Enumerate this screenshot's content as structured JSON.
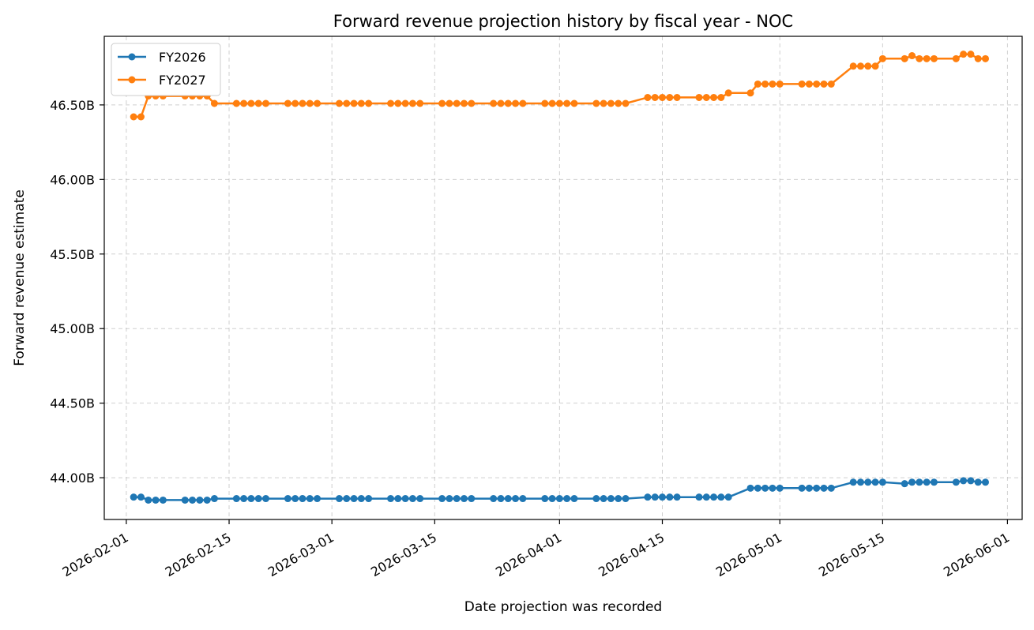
{
  "chart_data": {
    "type": "line",
    "title": "Forward revenue projection history by fiscal year - NOC",
    "xlabel": "Date projection was recorded",
    "ylabel": "Forward revenue estimate",
    "xlim": [
      "2026-01-29",
      "2026-06-03"
    ],
    "ylim": [
      43.72,
      46.96
    ],
    "grid": true,
    "legend_position": "top-left",
    "x_ticks": [
      "2026-02-01",
      "2026-02-15",
      "2026-03-01",
      "2026-03-15",
      "2026-04-01",
      "2026-04-15",
      "2026-05-01",
      "2026-05-15",
      "2026-06-01"
    ],
    "y_ticks": [
      44.0,
      44.5,
      45.0,
      45.5,
      46.0,
      46.5
    ],
    "y_tick_labels": [
      "44.00B",
      "44.50B",
      "45.00B",
      "45.50B",
      "46.00B",
      "46.50B"
    ],
    "x": [
      "2026-02-02",
      "2026-02-03",
      "2026-02-04",
      "2026-02-05",
      "2026-02-06",
      "2026-02-09",
      "2026-02-10",
      "2026-02-11",
      "2026-02-12",
      "2026-02-13",
      "2026-02-16",
      "2026-02-17",
      "2026-02-18",
      "2026-02-19",
      "2026-02-20",
      "2026-02-23",
      "2026-02-24",
      "2026-02-25",
      "2026-02-26",
      "2026-02-27",
      "2026-03-02",
      "2026-03-03",
      "2026-03-04",
      "2026-03-05",
      "2026-03-06",
      "2026-03-09",
      "2026-03-10",
      "2026-03-11",
      "2026-03-12",
      "2026-03-13",
      "2026-03-16",
      "2026-03-17",
      "2026-03-18",
      "2026-03-19",
      "2026-03-20",
      "2026-03-23",
      "2026-03-24",
      "2026-03-25",
      "2026-03-26",
      "2026-03-27",
      "2026-03-30",
      "2026-03-31",
      "2026-04-01",
      "2026-04-02",
      "2026-04-03",
      "2026-04-06",
      "2026-04-07",
      "2026-04-08",
      "2026-04-09",
      "2026-04-10",
      "2026-04-13",
      "2026-04-14",
      "2026-04-15",
      "2026-04-16",
      "2026-04-17",
      "2026-04-20",
      "2026-04-21",
      "2026-04-22",
      "2026-04-23",
      "2026-04-24",
      "2026-04-27",
      "2026-04-28",
      "2026-04-29",
      "2026-04-30",
      "2026-05-01",
      "2026-05-04",
      "2026-05-05",
      "2026-05-06",
      "2026-05-07",
      "2026-05-08",
      "2026-05-11",
      "2026-05-12",
      "2026-05-13",
      "2026-05-14",
      "2026-05-15",
      "2026-05-18",
      "2026-05-19",
      "2026-05-20",
      "2026-05-21",
      "2026-05-22",
      "2026-05-25",
      "2026-05-26",
      "2026-05-27",
      "2026-05-28",
      "2026-05-29"
    ],
    "series": [
      {
        "name": "FY2026",
        "color": "#1f77b4",
        "values": [
          43.87,
          43.87,
          43.85,
          43.85,
          43.85,
          43.85,
          43.85,
          43.85,
          43.85,
          43.86,
          43.86,
          43.86,
          43.86,
          43.86,
          43.86,
          43.86,
          43.86,
          43.86,
          43.86,
          43.86,
          43.86,
          43.86,
          43.86,
          43.86,
          43.86,
          43.86,
          43.86,
          43.86,
          43.86,
          43.86,
          43.86,
          43.86,
          43.86,
          43.86,
          43.86,
          43.86,
          43.86,
          43.86,
          43.86,
          43.86,
          43.86,
          43.86,
          43.86,
          43.86,
          43.86,
          43.86,
          43.86,
          43.86,
          43.86,
          43.86,
          43.87,
          43.87,
          43.87,
          43.87,
          43.87,
          43.87,
          43.87,
          43.87,
          43.87,
          43.87,
          43.93,
          43.93,
          43.93,
          43.93,
          43.93,
          43.93,
          43.93,
          43.93,
          43.93,
          43.93,
          43.97,
          43.97,
          43.97,
          43.97,
          43.97,
          43.96,
          43.97,
          43.97,
          43.97,
          43.97,
          43.97,
          43.98,
          43.98,
          43.97,
          43.97
        ]
      },
      {
        "name": "FY2027",
        "color": "#ff7f0e",
        "values": [
          46.42,
          46.42,
          46.56,
          46.56,
          46.56,
          46.56,
          46.56,
          46.56,
          46.56,
          46.51,
          46.51,
          46.51,
          46.51,
          46.51,
          46.51,
          46.51,
          46.51,
          46.51,
          46.51,
          46.51,
          46.51,
          46.51,
          46.51,
          46.51,
          46.51,
          46.51,
          46.51,
          46.51,
          46.51,
          46.51,
          46.51,
          46.51,
          46.51,
          46.51,
          46.51,
          46.51,
          46.51,
          46.51,
          46.51,
          46.51,
          46.51,
          46.51,
          46.51,
          46.51,
          46.51,
          46.51,
          46.51,
          46.51,
          46.51,
          46.51,
          46.55,
          46.55,
          46.55,
          46.55,
          46.55,
          46.55,
          46.55,
          46.55,
          46.55,
          46.58,
          46.58,
          46.64,
          46.64,
          46.64,
          46.64,
          46.64,
          46.64,
          46.64,
          46.64,
          46.64,
          46.76,
          46.76,
          46.76,
          46.76,
          46.81,
          46.81,
          46.83,
          46.81,
          46.81,
          46.81,
          46.81,
          46.84,
          46.84,
          46.81,
          46.81
        ]
      }
    ]
  }
}
